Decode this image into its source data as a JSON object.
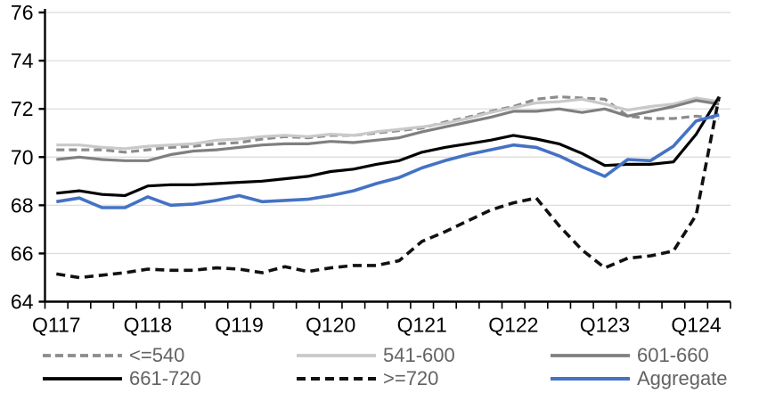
{
  "chart_data": {
    "type": "line",
    "title": "",
    "xlabel": "",
    "ylabel": "",
    "grid": "horizontal",
    "legend_position": "bottom",
    "y_axis": {
      "min": 64,
      "max": 76,
      "step": 2
    },
    "x_categories": [
      "Q117",
      "Q217",
      "Q317",
      "Q417",
      "Q118",
      "Q218",
      "Q318",
      "Q418",
      "Q119",
      "Q219",
      "Q319",
      "Q419",
      "Q120",
      "Q220",
      "Q320",
      "Q420",
      "Q121",
      "Q221",
      "Q321",
      "Q421",
      "Q122",
      "Q222",
      "Q322",
      "Q422",
      "Q123",
      "Q223",
      "Q323",
      "Q423",
      "Q124",
      "Q224"
    ],
    "x_tick_labels": [
      "Q117",
      "Q118",
      "Q119",
      "Q120",
      "Q121",
      "Q122",
      "Q123",
      "Q124"
    ],
    "x_tick_every": 4,
    "axis_color": "#000000",
    "gridline_color": "#d9d9d9",
    "series": [
      {
        "name": "<=540",
        "color": "#8c8c8c",
        "dash": "9 5",
        "width": 3.2,
        "values": [
          70.3,
          70.3,
          70.3,
          70.2,
          70.3,
          70.4,
          70.45,
          70.55,
          70.6,
          70.75,
          70.85,
          70.8,
          70.9,
          70.9,
          71.0,
          71.1,
          71.2,
          71.45,
          71.65,
          71.9,
          72.1,
          72.4,
          72.5,
          72.45,
          72.4,
          71.7,
          71.6,
          71.6,
          71.7,
          71.6
        ]
      },
      {
        "name": "541-600",
        "color": "#c9c9c9",
        "dash": null,
        "width": 3.2,
        "values": [
          70.5,
          70.5,
          70.4,
          70.35,
          70.45,
          70.5,
          70.55,
          70.7,
          70.75,
          70.85,
          70.9,
          70.85,
          70.95,
          70.9,
          71.05,
          71.15,
          71.25,
          71.4,
          71.6,
          71.85,
          72.05,
          72.25,
          72.3,
          72.4,
          72.2,
          71.95,
          72.1,
          72.2,
          72.45,
          72.3
        ]
      },
      {
        "name": "601-660",
        "color": "#7f7f7f",
        "dash": null,
        "width": 3.2,
        "values": [
          69.9,
          70.0,
          69.9,
          69.85,
          69.85,
          70.1,
          70.25,
          70.3,
          70.4,
          70.5,
          70.55,
          70.55,
          70.65,
          70.6,
          70.7,
          70.8,
          71.05,
          71.25,
          71.45,
          71.65,
          71.9,
          71.9,
          72.0,
          71.85,
          72.0,
          71.7,
          71.9,
          72.1,
          72.35,
          72.2
        ]
      },
      {
        "name": "661-720",
        "color": "#000000",
        "dash": null,
        "width": 3.2,
        "values": [
          68.5,
          68.6,
          68.45,
          68.4,
          68.8,
          68.85,
          68.85,
          68.9,
          68.95,
          69.0,
          69.1,
          69.2,
          69.4,
          69.5,
          69.7,
          69.85,
          70.2,
          70.4,
          70.55,
          70.7,
          70.9,
          70.75,
          70.55,
          70.15,
          69.65,
          69.7,
          69.7,
          69.8,
          70.95,
          72.5
        ]
      },
      {
        "name": ">=720",
        "color": "#111111",
        "dash": "10 6",
        "width": 3.6,
        "values": [
          65.15,
          65.0,
          65.1,
          65.2,
          65.35,
          65.3,
          65.3,
          65.4,
          65.35,
          65.2,
          65.45,
          65.25,
          65.4,
          65.5,
          65.5,
          65.7,
          66.5,
          66.9,
          67.35,
          67.8,
          68.1,
          68.3,
          67.15,
          66.15,
          65.4,
          65.8,
          65.9,
          66.1,
          67.6,
          72.5
        ]
      },
      {
        "name": "Aggregate",
        "color": "#4472c4",
        "dash": null,
        "width": 3.6,
        "values": [
          68.15,
          68.3,
          67.9,
          67.9,
          68.35,
          68.0,
          68.05,
          68.2,
          68.4,
          68.15,
          68.2,
          68.25,
          68.4,
          68.6,
          68.9,
          69.15,
          69.55,
          69.85,
          70.1,
          70.3,
          70.5,
          70.4,
          70.05,
          69.6,
          69.2,
          69.9,
          69.85,
          70.45,
          71.5,
          71.75
        ]
      }
    ]
  }
}
